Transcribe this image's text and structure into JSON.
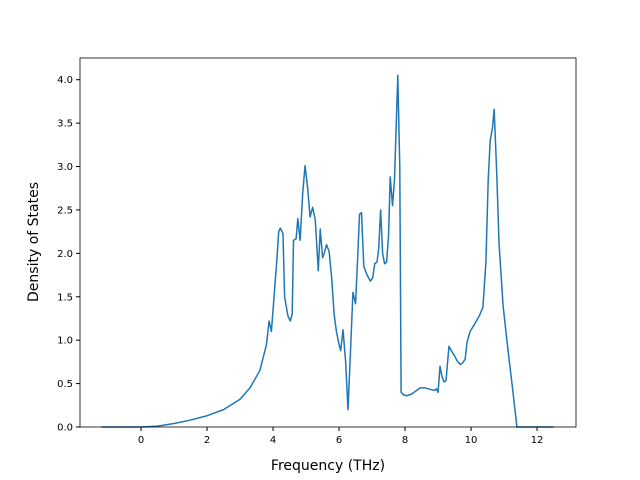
{
  "chart_data": {
    "type": "line",
    "xlabel": "Frequency (THz)",
    "ylabel": "Density of States",
    "xlim": [
      -1.85,
      13.18
    ],
    "ylim": [
      0,
      4.25
    ],
    "xticks": [
      0,
      2,
      4,
      6,
      8,
      10,
      12
    ],
    "yticks": [
      {
        "value": 0,
        "label": "0.0"
      },
      {
        "value": 0.5,
        "label": "0.5"
      },
      {
        "value": 1,
        "label": "1.0"
      },
      {
        "value": 1.5,
        "label": "1.5"
      },
      {
        "value": 2,
        "label": "2.0"
      },
      {
        "value": 2.5,
        "label": "2.5"
      },
      {
        "value": 3,
        "label": "3.0"
      },
      {
        "value": 3.5,
        "label": "3.5"
      },
      {
        "value": 4,
        "label": "4.0"
      }
    ],
    "grid": false,
    "series": [
      {
        "name": "DOS",
        "color": "#1f77b4",
        "x": [
          -1.2,
          0,
          0.5,
          1,
          1.5,
          2,
          2.5,
          3,
          3.3,
          3.6,
          3.8,
          3.88,
          3.95,
          4.05,
          4.12,
          4.17,
          4.22,
          4.3,
          4.35,
          4.45,
          4.52,
          4.58,
          4.62,
          4.7,
          4.75,
          4.82,
          4.9,
          4.97,
          5.05,
          5.12,
          5.2,
          5.28,
          5.37,
          5.43,
          5.5,
          5.55,
          5.62,
          5.7,
          5.78,
          5.85,
          5.92,
          6.0,
          6.05,
          6.12,
          6.2,
          6.27,
          6.35,
          6.42,
          6.5,
          6.57,
          6.62,
          6.68,
          6.75,
          6.85,
          6.95,
          7.02,
          7.08,
          7.15,
          7.2,
          7.26,
          7.32,
          7.38,
          7.44,
          7.5,
          7.55,
          7.62,
          7.68,
          7.78,
          7.84,
          7.88,
          7.95,
          8.05,
          8.2,
          8.35,
          8.45,
          8.6,
          8.7,
          8.8,
          8.9,
          8.95,
          9.0,
          9.06,
          9.12,
          9.18,
          9.24,
          9.33,
          9.4,
          9.5,
          9.58,
          9.67,
          9.75,
          9.82,
          9.88,
          9.97,
          10.1,
          10.25,
          10.36,
          10.45,
          10.52,
          10.58,
          10.65,
          10.7,
          10.78,
          10.85,
          10.97,
          11.1,
          11.24,
          11.39,
          12.5
        ],
        "values": [
          0,
          0,
          0.01,
          0.04,
          0.08,
          0.13,
          0.2,
          0.32,
          0.45,
          0.65,
          0.95,
          1.22,
          1.1,
          1.6,
          1.95,
          2.25,
          2.29,
          2.23,
          1.5,
          1.28,
          1.22,
          1.3,
          2.15,
          2.17,
          2.4,
          2.15,
          2.7,
          3.01,
          2.75,
          2.42,
          2.53,
          2.38,
          1.8,
          2.28,
          1.95,
          2.0,
          2.1,
          2.02,
          1.7,
          1.3,
          1.1,
          0.95,
          0.88,
          1.12,
          0.75,
          0.2,
          0.9,
          1.55,
          1.42,
          2.0,
          2.45,
          2.47,
          1.85,
          1.75,
          1.68,
          1.72,
          1.88,
          1.9,
          2.05,
          2.5,
          2.0,
          1.88,
          1.9,
          2.2,
          2.88,
          2.55,
          2.85,
          4.05,
          3.0,
          0.4,
          0.37,
          0.36,
          0.38,
          0.42,
          0.45,
          0.45,
          0.44,
          0.43,
          0.42,
          0.44,
          0.4,
          0.7,
          0.58,
          0.52,
          0.53,
          0.93,
          0.88,
          0.82,
          0.76,
          0.72,
          0.74,
          0.78,
          0.98,
          1.1,
          1.18,
          1.28,
          1.38,
          1.9,
          2.85,
          3.3,
          3.45,
          3.66,
          2.9,
          2.1,
          1.4,
          0.95,
          0.5,
          0,
          0
        ]
      }
    ]
  }
}
